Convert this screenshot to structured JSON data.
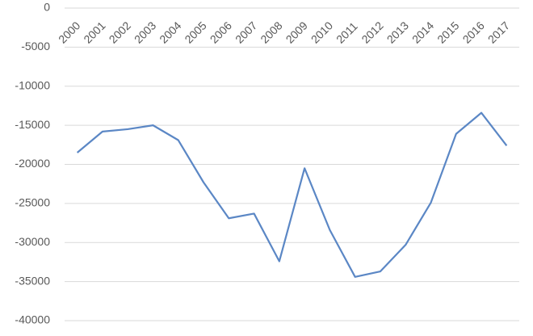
{
  "chart_data": {
    "type": "line",
    "categories": [
      "2000",
      "2001",
      "2002",
      "2003",
      "2004",
      "2005",
      "2006",
      "2007",
      "2008",
      "2009",
      "2010",
      "2011",
      "2012",
      "2013",
      "2014",
      "2015",
      "2016",
      "2017"
    ],
    "values": [
      -18500,
      -15800,
      -15500,
      -15000,
      -16900,
      -22300,
      -26900,
      -26300,
      -32400,
      -20500,
      -28400,
      -34400,
      -33700,
      -30300,
      -24900,
      -16100,
      -13400,
      -17600
    ],
    "color": "#5b87c5",
    "ylim": [
      -40000,
      0
    ],
    "yticks": [
      0,
      -5000,
      -10000,
      -15000,
      -20000,
      -25000,
      -30000,
      -35000,
      -40000
    ],
    "grid": true
  }
}
